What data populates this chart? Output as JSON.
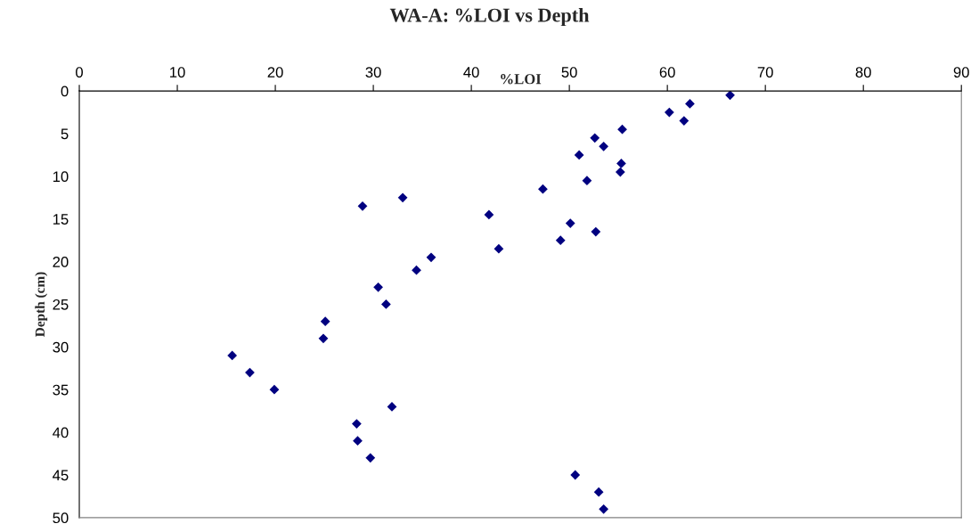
{
  "chart_data": {
    "type": "scatter",
    "title": "WA-A: %LOI vs Depth",
    "xlabel": "%LOI",
    "ylabel": "Depth (cm)",
    "x": [
      66.4,
      62.3,
      60.2,
      61.7,
      55.4,
      52.6,
      53.5,
      51.0,
      55.3,
      55.2,
      51.8,
      47.3,
      33.0,
      28.9,
      41.8,
      50.1,
      52.7,
      49.1,
      42.8,
      35.9,
      34.4,
      30.5,
      31.3,
      25.1,
      24.9,
      15.6,
      17.4,
      19.9,
      31.9,
      28.3,
      28.4,
      29.7,
      50.6,
      53.0,
      53.5
    ],
    "series": [
      {
        "color": "#000080",
        "values": [
          0.5,
          1.5,
          2.5,
          3.5,
          4.5,
          5.5,
          6.5,
          7.5,
          8.5,
          9.5,
          10.5,
          11.5,
          12.5,
          13.5,
          14.5,
          15.5,
          16.5,
          17.5,
          18.5,
          19.5,
          21,
          23,
          25,
          27,
          29,
          31,
          33,
          35,
          37,
          39,
          41,
          43,
          45,
          47,
          49
        ]
      }
    ],
    "xlim": [
      0,
      90
    ],
    "xticks": [
      0,
      10,
      20,
      30,
      40,
      50,
      60,
      70,
      80,
      90
    ],
    "ylim": [
      50,
      0
    ],
    "yticks": [
      0,
      5,
      10,
      15,
      20,
      25,
      30,
      35,
      40,
      45,
      50
    ],
    "marker": "diamond",
    "grid": false,
    "legend": false
  }
}
